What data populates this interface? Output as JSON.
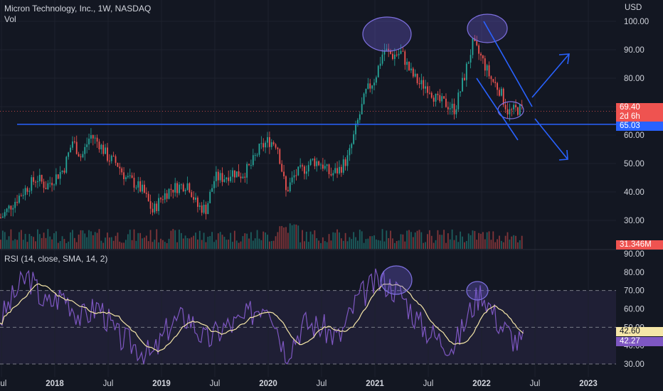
{
  "header": {
    "symbol_title": "Micron Technology, Inc., 1W, NASDAQ",
    "volume_label": "Vol",
    "rsi_title": "RSI (14, close, SMA, 14, 2)",
    "currency": "USD"
  },
  "price_axis": {
    "ticks": [
      "100.00",
      "90.00",
      "80.00",
      "70.00",
      "60.00",
      "50.00",
      "40.00",
      "30.00"
    ],
    "range": [
      24,
      104
    ]
  },
  "rsi_axis": {
    "ticks": [
      "90.00",
      "80.00",
      "70.00",
      "60.00",
      "50.00",
      "40.00",
      "30.00"
    ],
    "range": [
      25,
      92
    ],
    "bands": [
      70,
      50,
      30
    ]
  },
  "time_axis": {
    "labels": [
      "Jul",
      "2018",
      "Jul",
      "2019",
      "Jul",
      "2020",
      "Jul",
      "2021",
      "Jul",
      "2022",
      "Jul",
      "2023"
    ]
  },
  "badges": {
    "last_price": "69.40",
    "countdown": "2d 6h",
    "level_price": "65.03",
    "volume": "31.346M",
    "rsi_sma": "42.60",
    "rsi_value": "42.27"
  },
  "colors": {
    "background": "#131722",
    "up": "#26a69a",
    "down": "#ef5350",
    "drawing": "#2962ff",
    "rsi_line": "#7e57c2",
    "rsi_sma": "#f5e6a8"
  },
  "chart_data": {
    "type": "candlestick",
    "interval": "1W",
    "support_level": 65.03,
    "last_price": 69.4,
    "anchors_price": [
      [
        "2017-07",
        31
      ],
      [
        "2017-08",
        35
      ],
      [
        "2017-10",
        42
      ],
      [
        "2017-11",
        45
      ],
      [
        "2017-12",
        42
      ],
      [
        "2018-02",
        48
      ],
      [
        "2018-03",
        58
      ],
      [
        "2018-04",
        52
      ],
      [
        "2018-05",
        60
      ],
      [
        "2018-06",
        57
      ],
      [
        "2018-07",
        52
      ],
      [
        "2018-08",
        50
      ],
      [
        "2018-09",
        45
      ],
      [
        "2018-10",
        43
      ],
      [
        "2018-11",
        40
      ],
      [
        "2018-12",
        33
      ],
      [
        "2019-01",
        38
      ],
      [
        "2019-02",
        41
      ],
      [
        "2019-03",
        42
      ],
      [
        "2019-04",
        43
      ],
      [
        "2019-05",
        35
      ],
      [
        "2019-06",
        34
      ],
      [
        "2019-07",
        45
      ],
      [
        "2019-08",
        45
      ],
      [
        "2019-09",
        47
      ],
      [
        "2019-10",
        46
      ],
      [
        "2019-11",
        49
      ],
      [
        "2019-12",
        55
      ],
      [
        "2020-01",
        58
      ],
      [
        "2020-02",
        57
      ],
      [
        "2020-03",
        40
      ],
      [
        "2020-04",
        46
      ],
      [
        "2020-05",
        48
      ],
      [
        "2020-06",
        51
      ],
      [
        "2020-07",
        50
      ],
      [
        "2020-08",
        46
      ],
      [
        "2020-09",
        48
      ],
      [
        "2020-10",
        52
      ],
      [
        "2020-11",
        64
      ],
      [
        "2020-12",
        75
      ],
      [
        "2021-01",
        80
      ],
      [
        "2021-02",
        90
      ],
      [
        "2021-03",
        88
      ],
      [
        "2021-04",
        89
      ],
      [
        "2021-05",
        82
      ],
      [
        "2021-06",
        78
      ],
      [
        "2021-07",
        77
      ],
      [
        "2021-08",
        72
      ],
      [
        "2021-09",
        71
      ],
      [
        "2021-10",
        69
      ],
      [
        "2021-11",
        80
      ],
      [
        "2021-12",
        92
      ],
      [
        "2022-01",
        87
      ],
      [
        "2022-02",
        80
      ],
      [
        "2022-03",
        76
      ],
      [
        "2022-04",
        68
      ],
      [
        "2022-05",
        69
      ]
    ],
    "anchors_rsi": [
      [
        "2017-07",
        55
      ],
      [
        "2017-09",
        72
      ],
      [
        "2017-10",
        78
      ],
      [
        "2017-12",
        62
      ],
      [
        "2018-02",
        68
      ],
      [
        "2018-04",
        55
      ],
      [
        "2018-06",
        62
      ],
      [
        "2018-08",
        45
      ],
      [
        "2018-10",
        40
      ],
      [
        "2018-12",
        34
      ],
      [
        "2019-02",
        52
      ],
      [
        "2019-04",
        56
      ],
      [
        "2019-06",
        42
      ],
      [
        "2019-08",
        50
      ],
      [
        "2019-10",
        53
      ],
      [
        "2019-12",
        62
      ],
      [
        "2020-01",
        65
      ],
      [
        "2020-03",
        36
      ],
      [
        "2020-05",
        52
      ],
      [
        "2020-07",
        50
      ],
      [
        "2020-09",
        44
      ],
      [
        "2020-11",
        65
      ],
      [
        "2021-01",
        74
      ],
      [
        "2021-02",
        75
      ],
      [
        "2021-04",
        68
      ],
      [
        "2021-06",
        52
      ],
      [
        "2021-08",
        44
      ],
      [
        "2021-10",
        40
      ],
      [
        "2021-12",
        62
      ],
      [
        "2022-01",
        70
      ],
      [
        "2022-03",
        52
      ],
      [
        "2022-05",
        42
      ]
    ]
  }
}
